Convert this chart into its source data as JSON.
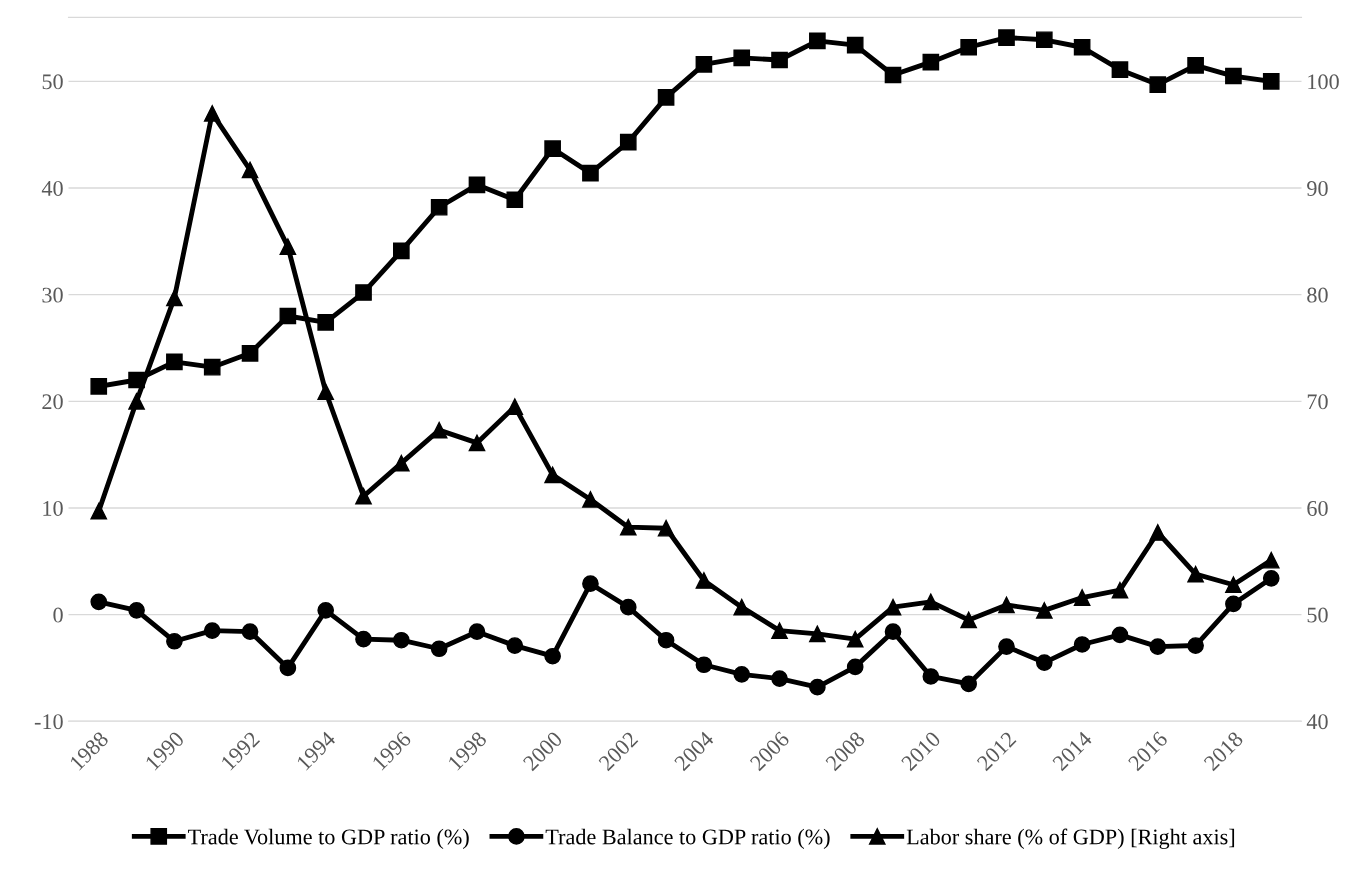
{
  "chart_data": {
    "type": "line",
    "categories": [
      "1988",
      null,
      "1990",
      null,
      "1992",
      null,
      "1994",
      null,
      "1996",
      null,
      "1998",
      null,
      "2000",
      null,
      "2002",
      null,
      "2004",
      null,
      "2006",
      null,
      "2008",
      null,
      "2010",
      null,
      "2012",
      null,
      "2014",
      null,
      "2016",
      null,
      "2018",
      null
    ],
    "series": [
      {
        "name": "Trade Volume to GDP ratio (%)",
        "color": "#000000",
        "marker": "square",
        "values": [
          21.4,
          22.0,
          23.7,
          23.2,
          24.5,
          28.0,
          27.4,
          30.2,
          34.1,
          38.2,
          40.3,
          38.9,
          43.7,
          41.4,
          44.3,
          48.5,
          51.6,
          52.2,
          52.0,
          53.8,
          53.4,
          50.6,
          51.8,
          53.2,
          54.1,
          53.9,
          53.2,
          51.1,
          49.7,
          51.5,
          50.5,
          50.0
        ]
      },
      {
        "name": "Trade Balance to GDP ratio (%)",
        "color": "#000000",
        "marker": "circle",
        "values": [
          1.2,
          0.4,
          -2.5,
          -1.5,
          -1.6,
          -5.0,
          0.4,
          -2.3,
          -2.4,
          -3.2,
          -1.6,
          -2.9,
          -3.9,
          2.9,
          0.7,
          -2.4,
          -4.7,
          -5.6,
          -6.0,
          -6.8,
          -4.9,
          -1.6,
          -5.8,
          -6.5,
          -3.0,
          -4.5,
          -2.8,
          -1.9,
          -3.0,
          -2.9,
          1.0,
          3.4
        ]
      },
      {
        "name": "Labor share (% of GDP) [Right axis]",
        "color": "#000000",
        "marker": "triangle",
        "axis": "y2",
        "values": [
          59.7,
          70.0,
          79.7,
          97.0,
          91.7,
          84.5,
          70.9,
          61.1,
          64.2,
          67.3,
          66.1,
          69.5,
          63.1,
          60.8,
          58.2,
          58.1,
          53.2,
          50.7,
          48.5,
          48.2,
          47.7,
          50.7,
          51.2,
          49.5,
          50.9,
          50.4,
          51.6,
          52.3,
          57.7,
          53.8,
          52.8,
          55.1
        ]
      }
    ],
    "ylim": [
      -10,
      56
    ],
    "yticks": [
      -10,
      0,
      10,
      20,
      30,
      40,
      50
    ],
    "y2lim": [
      40,
      106
    ],
    "y2ticks": [
      40,
      50,
      60,
      70,
      80,
      90,
      100
    ],
    "grid": "y",
    "legend": "bottom",
    "line_style": "solid"
  }
}
